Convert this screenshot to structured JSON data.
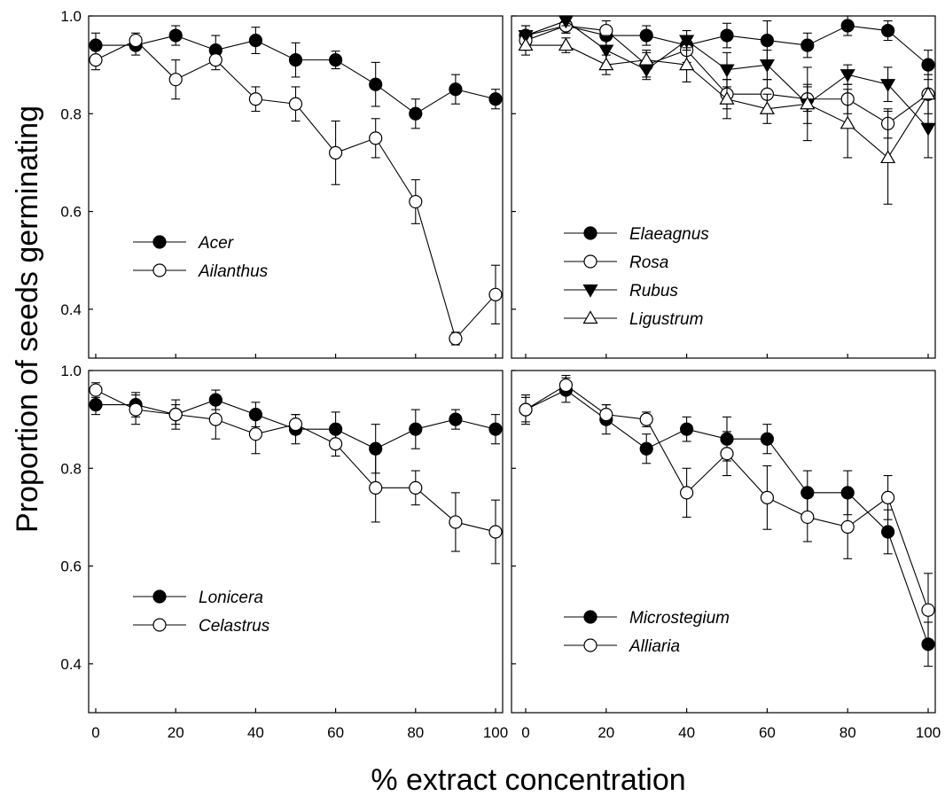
{
  "figure": {
    "ylabel": "Proportion of seeds germinating",
    "xlabel": "% extract concentration"
  },
  "chart_data": [
    {
      "type": "line",
      "panel": "top-left",
      "xlim": [
        0,
        100
      ],
      "ylim": [
        0.3,
        1.0
      ],
      "xticks": [],
      "yticks": [
        "0.4",
        "0.6",
        "0.8",
        "1.0"
      ],
      "legend_position": "lower-left",
      "x": [
        0,
        10,
        20,
        30,
        40,
        50,
        60,
        70,
        80,
        90,
        100
      ],
      "series": [
        {
          "name": "Acer",
          "marker": "circle-filled",
          "values": [
            0.94,
            0.94,
            0.96,
            0.93,
            0.95,
            0.91,
            0.91,
            0.86,
            0.8,
            0.85,
            0.83
          ],
          "errors": [
            0.025,
            0.02,
            0.02,
            0.03,
            0.027,
            0.035,
            0.018,
            0.045,
            0.03,
            0.03,
            0.02
          ]
        },
        {
          "name": "Ailanthus",
          "marker": "circle-open",
          "values": [
            0.91,
            0.95,
            0.87,
            0.91,
            0.83,
            0.82,
            0.72,
            0.75,
            0.62,
            0.34,
            0.43
          ],
          "errors": [
            0.02,
            0.015,
            0.04,
            0.02,
            0.025,
            0.035,
            0.065,
            0.04,
            0.045,
            0.013,
            0.06
          ]
        }
      ]
    },
    {
      "type": "line",
      "panel": "top-right",
      "xlim": [
        0,
        100
      ],
      "ylim": [
        0.3,
        1.0
      ],
      "xticks": [],
      "yticks": [],
      "legend_position": "lower-left",
      "x": [
        0,
        10,
        20,
        30,
        40,
        50,
        60,
        70,
        80,
        90,
        100
      ],
      "series": [
        {
          "name": "Elaeagnus",
          "marker": "circle-filled",
          "values": [
            0.96,
            0.98,
            0.96,
            0.96,
            0.94,
            0.96,
            0.95,
            0.94,
            0.98,
            0.97,
            0.9
          ],
          "errors": [
            0.02,
            0.015,
            0.02,
            0.02,
            0.02,
            0.025,
            0.04,
            0.025,
            0.02,
            0.02,
            0.03
          ]
        },
        {
          "name": "Rosa",
          "marker": "circle-open",
          "values": [
            0.95,
            0.98,
            0.97,
            0.9,
            0.93,
            0.84,
            0.84,
            0.83,
            0.83,
            0.78,
            0.84
          ],
          "errors": [
            0.02,
            0.015,
            0.02,
            0.025,
            0.025,
            0.03,
            0.03,
            0.025,
            0.03,
            0.03,
            0.04
          ]
        },
        {
          "name": "Rubus",
          "marker": "triangle-down-filled",
          "values": [
            0.96,
            0.99,
            0.93,
            0.89,
            0.95,
            0.89,
            0.9,
            0.82,
            0.88,
            0.86,
            0.77
          ],
          "errors": [
            0.02,
            0.01,
            0.03,
            0.02,
            0.02,
            0.035,
            0.03,
            0.04,
            0.02,
            0.035,
            0.06
          ]
        },
        {
          "name": "Ligustrum",
          "marker": "triangle-up-open",
          "values": [
            0.94,
            0.94,
            0.9,
            0.91,
            0.9,
            0.83,
            0.81,
            0.82,
            0.78,
            0.71,
            0.84
          ],
          "errors": [
            0.02,
            0.015,
            0.02,
            0.02,
            0.035,
            0.04,
            0.03,
            0.075,
            0.07,
            0.095,
            0.06
          ]
        }
      ]
    },
    {
      "type": "line",
      "panel": "bottom-left",
      "xlim": [
        0,
        100
      ],
      "ylim": [
        0.3,
        1.0
      ],
      "xticks": [
        "0",
        "20",
        "40",
        "60",
        "80",
        "100"
      ],
      "yticks": [
        "0.4",
        "0.6",
        "0.8",
        "1.0"
      ],
      "legend_position": "lower-left",
      "x": [
        0,
        10,
        20,
        30,
        40,
        50,
        60,
        70,
        80,
        90,
        100
      ],
      "series": [
        {
          "name": "Lonicera",
          "marker": "circle-filled",
          "values": [
            0.93,
            0.93,
            0.91,
            0.94,
            0.91,
            0.88,
            0.88,
            0.84,
            0.88,
            0.9,
            0.88
          ],
          "errors": [
            0.02,
            0.025,
            0.03,
            0.02,
            0.025,
            0.03,
            0.035,
            0.05,
            0.04,
            0.02,
            0.03
          ]
        },
        {
          "name": "Celastrus",
          "marker": "circle-open",
          "values": [
            0.96,
            0.92,
            0.91,
            0.9,
            0.87,
            0.89,
            0.85,
            0.76,
            0.76,
            0.69,
            0.67
          ],
          "errors": [
            0.015,
            0.03,
            0.02,
            0.04,
            0.04,
            0.02,
            0.025,
            0.07,
            0.035,
            0.06,
            0.065
          ]
        }
      ]
    },
    {
      "type": "line",
      "panel": "bottom-right",
      "xlim": [
        0,
        100
      ],
      "ylim": [
        0.3,
        1.0
      ],
      "xticks": [
        "0",
        "20",
        "40",
        "60",
        "80",
        "100"
      ],
      "yticks": [],
      "legend_position": "lower-left",
      "x": [
        0,
        10,
        20,
        30,
        40,
        50,
        60,
        70,
        80,
        90,
        100
      ],
      "series": [
        {
          "name": "Microstegium",
          "marker": "circle-filled",
          "values": [
            0.92,
            0.96,
            0.9,
            0.84,
            0.88,
            0.86,
            0.86,
            0.75,
            0.75,
            0.67,
            0.44
          ],
          "errors": [
            0.03,
            0.025,
            0.03,
            0.03,
            0.025,
            0.045,
            0.03,
            0.045,
            0.045,
            0.045,
            0.045
          ]
        },
        {
          "name": "Alliaria",
          "marker": "circle-open",
          "values": [
            0.92,
            0.97,
            0.91,
            0.9,
            0.75,
            0.83,
            0.74,
            0.7,
            0.68,
            0.74,
            0.51
          ],
          "errors": [
            0.025,
            0.02,
            0.02,
            0.015,
            0.05,
            0.045,
            0.065,
            0.05,
            0.065,
            0.045,
            0.075
          ]
        }
      ]
    }
  ]
}
